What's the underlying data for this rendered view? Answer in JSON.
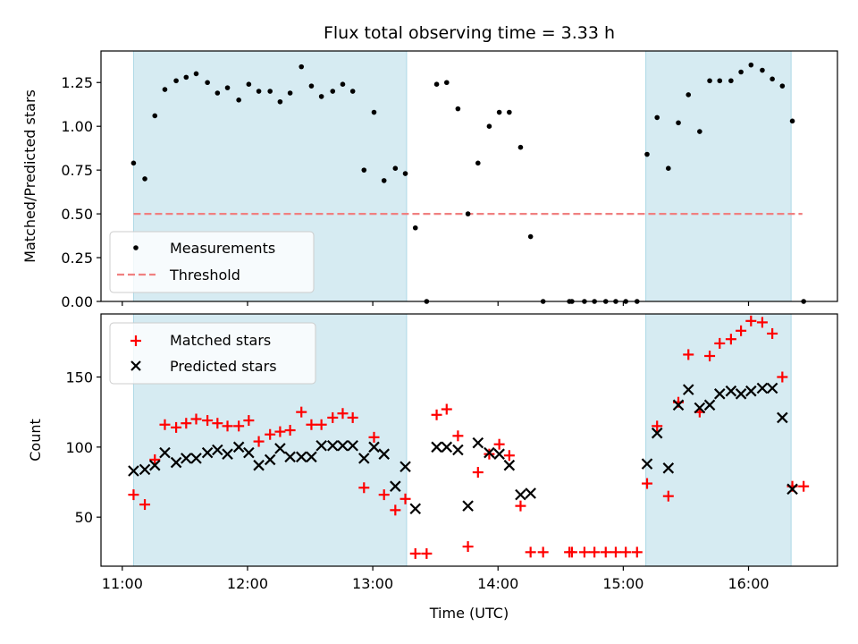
{
  "chart_data": [
    {
      "type": "scatter",
      "panel": "top",
      "title": "Flux total observing time = 3.33 h",
      "xlabel": "",
      "ylabel": "Matched/Predicted stars",
      "ylim": [
        0,
        1.43
      ],
      "xlim_hours": [
        10.83,
        16.71
      ],
      "yticks": [
        0.0,
        0.25,
        0.5,
        0.75,
        1.0,
        1.25
      ],
      "ytick_labels": [
        "0.00",
        "0.25",
        "0.50",
        "0.75",
        "1.00",
        "1.25"
      ],
      "grid": false,
      "legend": {
        "position": "lower-left",
        "entries": [
          "Measurements",
          "Threshold"
        ]
      },
      "shaded_intervals_hours": [
        [
          11.09,
          13.27
        ],
        [
          15.18,
          16.34
        ]
      ],
      "threshold": {
        "name": "Threshold",
        "value": 0.5,
        "x_range_hours": [
          11.09,
          16.43
        ],
        "color": "#f08080"
      },
      "series": [
        {
          "name": "Measurements",
          "marker": "dot",
          "color": "#000000",
          "x_hours": [
            11.09,
            11.18,
            11.26,
            11.34,
            11.43,
            11.51,
            11.59,
            11.68,
            11.76,
            11.84,
            11.93,
            12.01,
            12.09,
            12.18,
            12.26,
            12.34,
            12.43,
            12.51,
            12.59,
            12.68,
            12.76,
            12.84,
            12.93,
            13.01,
            13.09,
            13.18,
            13.26,
            13.34,
            13.43,
            13.51,
            13.59,
            13.68,
            13.76,
            13.84,
            13.93,
            14.01,
            14.09,
            14.18,
            14.26,
            14.36,
            14.57,
            14.59,
            14.69,
            14.77,
            14.86,
            14.94,
            15.02,
            15.11,
            15.19,
            15.27,
            15.36,
            15.44,
            15.52,
            15.61,
            15.69,
            15.77,
            15.86,
            15.94,
            16.02,
            16.11,
            16.19,
            16.27,
            16.35,
            16.44
          ],
          "values": [
            0.79,
            0.7,
            1.06,
            1.21,
            1.26,
            1.28,
            1.3,
            1.25,
            1.19,
            1.22,
            1.15,
            1.24,
            1.2,
            1.2,
            1.14,
            1.19,
            1.34,
            1.23,
            1.17,
            1.2,
            1.24,
            1.2,
            0.75,
            1.08,
            0.69,
            0.76,
            0.73,
            0.42,
            0.0,
            1.24,
            1.25,
            1.1,
            0.5,
            0.79,
            1.0,
            1.08,
            1.08,
            0.88,
            0.37,
            0.0,
            0.0,
            0.0,
            0.0,
            0.0,
            0.0,
            0.0,
            0.0,
            0.0,
            0.84,
            1.05,
            0.76,
            1.02,
            1.18,
            0.97,
            1.26,
            1.26,
            1.26,
            1.31,
            1.35,
            1.32,
            1.27,
            1.23,
            1.03,
            0.0
          ]
        }
      ]
    },
    {
      "type": "scatter",
      "panel": "bottom",
      "title": "",
      "xlabel": "Time (UTC)",
      "ylabel": "Count",
      "ylim": [
        15,
        195
      ],
      "xlim_hours": [
        10.83,
        16.71
      ],
      "yticks": [
        50,
        100,
        150
      ],
      "ytick_labels": [
        "50",
        "100",
        "150"
      ],
      "xticks_hours": [
        11,
        12,
        13,
        14,
        15,
        16
      ],
      "xtick_labels": [
        "11:00",
        "12:00",
        "13:00",
        "14:00",
        "15:00",
        "16:00"
      ],
      "grid": false,
      "legend": {
        "position": "top-left",
        "entries": [
          "Matched stars",
          "Predicted stars"
        ]
      },
      "shaded_intervals_hours": [
        [
          11.09,
          13.27
        ],
        [
          15.18,
          16.34
        ]
      ],
      "series": [
        {
          "name": "Matched stars",
          "marker": "plus",
          "color": "#ff0000",
          "x_hours": [
            11.09,
            11.18,
            11.26,
            11.34,
            11.43,
            11.51,
            11.59,
            11.68,
            11.76,
            11.84,
            11.93,
            12.01,
            12.09,
            12.18,
            12.26,
            12.34,
            12.43,
            12.51,
            12.59,
            12.68,
            12.76,
            12.84,
            12.93,
            13.01,
            13.09,
            13.18,
            13.26,
            13.34,
            13.43,
            13.51,
            13.59,
            13.68,
            13.76,
            13.84,
            13.93,
            14.01,
            14.09,
            14.18,
            14.26,
            14.36,
            14.57,
            14.59,
            14.69,
            14.77,
            14.86,
            14.94,
            15.02,
            15.11,
            15.19,
            15.27,
            15.36,
            15.44,
            15.52,
            15.61,
            15.69,
            15.77,
            15.86,
            15.94,
            16.02,
            16.11,
            16.19,
            16.27,
            16.35,
            16.44
          ],
          "values": [
            66,
            59,
            91,
            116,
            114,
            117,
            120,
            119,
            117,
            115,
            115,
            119,
            104,
            109,
            111,
            112,
            125,
            116,
            116,
            121,
            124,
            121,
            71,
            107,
            66,
            55,
            63,
            24,
            24,
            123,
            127,
            108,
            29,
            82,
            95,
            102,
            94,
            58,
            25,
            25,
            25,
            25,
            25,
            25,
            25,
            25,
            25,
            25,
            74,
            115,
            65,
            132,
            166,
            125,
            165,
            174,
            177,
            183,
            190,
            189,
            181,
            150,
            72,
            72
          ]
        },
        {
          "name": "Predicted stars",
          "marker": "x",
          "color": "#000000",
          "x_hours": [
            11.09,
            11.18,
            11.26,
            11.34,
            11.43,
            11.51,
            11.59,
            11.68,
            11.76,
            11.84,
            11.93,
            12.01,
            12.09,
            12.18,
            12.26,
            12.34,
            12.43,
            12.51,
            12.59,
            12.68,
            12.76,
            12.84,
            12.93,
            13.01,
            13.09,
            13.18,
            13.26,
            13.34,
            13.51,
            13.59,
            13.68,
            13.76,
            13.84,
            13.93,
            14.01,
            14.09,
            14.18,
            14.26,
            15.19,
            15.27,
            15.36,
            15.44,
            15.52,
            15.61,
            15.69,
            15.77,
            15.86,
            15.94,
            16.02,
            16.11,
            16.19,
            16.27,
            16.35
          ],
          "values": [
            83,
            84,
            87,
            96,
            89,
            92,
            92,
            96,
            98,
            95,
            100,
            96,
            87,
            91,
            99,
            93,
            93,
            93,
            101,
            101,
            101,
            101,
            92,
            100,
            95,
            72,
            86,
            56,
            100,
            100,
            98,
            58,
            103,
            96,
            95,
            87,
            66,
            67,
            88,
            110,
            85,
            130,
            141,
            128,
            130,
            138,
            140,
            138,
            140,
            142,
            142,
            121,
            70
          ]
        }
      ]
    }
  ]
}
